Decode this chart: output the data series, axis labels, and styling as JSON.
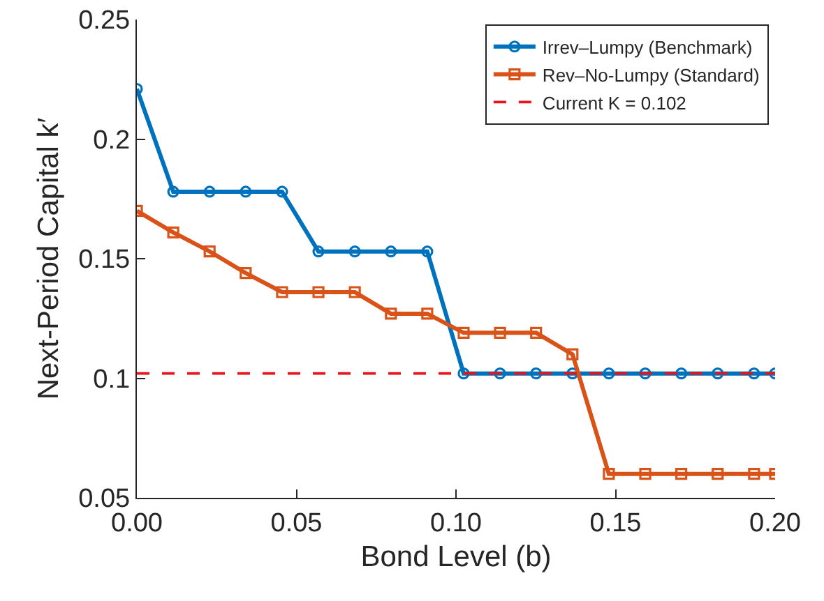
{
  "chart_data": {
    "type": "line",
    "xlabel": "Bond Level (b)",
    "ylabel": "Next-Period Capital k′",
    "x": [
      0,
      0.0114,
      0.0228,
      0.0341,
      0.0455,
      0.0569,
      0.0683,
      0.0796,
      0.091,
      0.1024,
      0.1138,
      0.1251,
      0.1365,
      0.1479,
      0.1593,
      0.1706,
      0.182,
      0.1934,
      0.2
    ],
    "series": [
      {
        "name": "Irrev–Lumpy (Benchmark)",
        "color": "#0072bd",
        "marker": "circle",
        "values": [
          0.221,
          0.178,
          0.178,
          0.178,
          0.178,
          0.153,
          0.153,
          0.153,
          0.153,
          0.102,
          0.102,
          0.102,
          0.102,
          0.102,
          0.102,
          0.102,
          0.102,
          0.102,
          0.102
        ]
      },
      {
        "name": "Rev–No-Lumpy (Standard)",
        "color": "#d95319",
        "marker": "square",
        "values": [
          0.17,
          0.161,
          0.153,
          0.144,
          0.136,
          0.136,
          0.136,
          0.127,
          0.127,
          0.119,
          0.119,
          0.119,
          0.11,
          0.06,
          0.06,
          0.06,
          0.06,
          0.06,
          0.06
        ]
      }
    ],
    "ref_lines": [
      {
        "axis": "y",
        "value": 0.102,
        "label": "Current K = 0.102",
        "color": "#e8141b",
        "line_style": "dashed"
      }
    ],
    "xlim": [
      0,
      0.2
    ],
    "xticks": [
      {
        "value": 0,
        "label": "0.00"
      },
      {
        "value": 0.05,
        "label": "0.05"
      },
      {
        "value": 0.1,
        "label": "0.10"
      },
      {
        "value": 0.15,
        "label": "0.15"
      },
      {
        "value": 0.2,
        "label": "0.20"
      }
    ],
    "ylim": [
      0.05,
      0.25
    ],
    "yticks": [
      0.05,
      0.1,
      0.15,
      0.2,
      0.25
    ],
    "grid": false,
    "legend": "top right"
  }
}
